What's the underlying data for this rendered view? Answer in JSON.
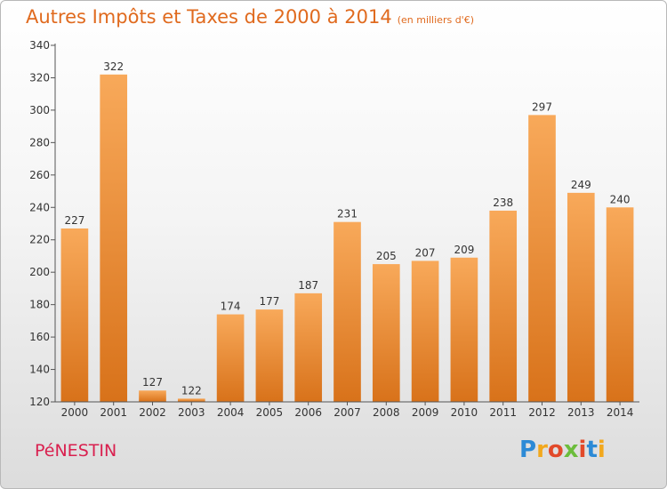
{
  "title": "Autres Impôts et Taxes de 2000 à 2014",
  "unit_label": "(en milliers d'€)",
  "city": "PéNESTIN",
  "logo": {
    "letters": [
      "P",
      "r",
      "o",
      "x",
      "i",
      "t",
      "i"
    ],
    "colors": [
      "#2c8ad6",
      "#f2a81d",
      "#e24a2a",
      "#6cbd3c",
      "#e24a2a",
      "#2c8ad6",
      "#f2a81d"
    ]
  },
  "colors": {
    "bar_top": "#f8a95a",
    "bar_bottom": "#d8721a",
    "title": "#e06a1e",
    "city": "#d9204f"
  },
  "chart_data": {
    "type": "bar",
    "categories": [
      "2000",
      "2001",
      "2002",
      "2003",
      "2004",
      "2005",
      "2006",
      "2007",
      "2008",
      "2009",
      "2010",
      "2011",
      "2012",
      "2013",
      "2014"
    ],
    "values": [
      227,
      322,
      127,
      122,
      174,
      177,
      187,
      231,
      205,
      207,
      209,
      238,
      297,
      249,
      240
    ],
    "ylim": [
      120,
      340
    ],
    "yticks": [
      120,
      140,
      160,
      180,
      200,
      220,
      240,
      260,
      280,
      300,
      320,
      340
    ],
    "grid": false
  }
}
